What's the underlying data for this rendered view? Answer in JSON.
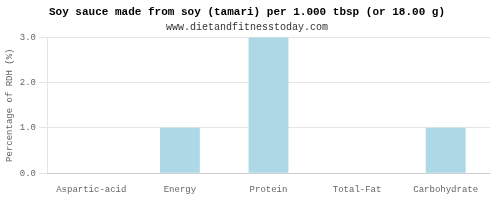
{
  "chart_data": {
    "type": "bar",
    "title": "Soy sauce made from soy (tamari) per 1.000 tbsp (or 18.00 g)",
    "subtitle": "www.dietandfitnesstoday.com",
    "categories": [
      "Aspartic-acid",
      "Energy",
      "Protein",
      "Total-Fat",
      "Carbohydrate"
    ],
    "values": [
      0.0,
      1.0,
      3.0,
      0.0,
      1.0
    ],
    "color": "#add8e6",
    "ylabel": "Percentage of RDH (%)",
    "ylim": [
      0,
      3.0
    ],
    "yticks": [
      {
        "value": 0.0,
        "label": "0.0"
      },
      {
        "value": 1.0,
        "label": "1.0"
      },
      {
        "value": 2.0,
        "label": "2.0"
      },
      {
        "value": 3.0,
        "label": "3.0"
      }
    ],
    "grid": true
  }
}
